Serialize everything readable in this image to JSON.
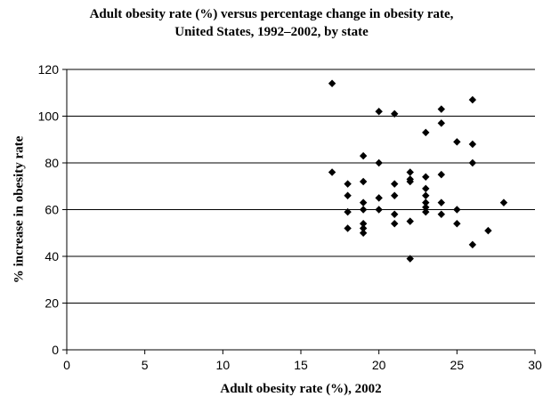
{
  "chart_data": {
    "type": "scatter",
    "title_line1": "Adult obesity rate (%) versus percentage change in obesity rate,",
    "title_line2": "United States, 1992–2002, by state",
    "xlabel": "Adult obesity rate (%), 2002",
    "ylabel": "% increase in obesity rate",
    "xlim": [
      0,
      30
    ],
    "ylim": [
      0,
      120
    ],
    "xticks": [
      0,
      5,
      10,
      15,
      20,
      25,
      30
    ],
    "yticks": [
      0,
      20,
      40,
      60,
      80,
      100,
      120
    ],
    "grid": "horizontal",
    "marker": "diamond",
    "marker_color": "#000000",
    "series": [
      {
        "points": [
          [
            17,
            114
          ],
          [
            17,
            76
          ],
          [
            18,
            71
          ],
          [
            18,
            66
          ],
          [
            18,
            59
          ],
          [
            18,
            52
          ],
          [
            19,
            83
          ],
          [
            19,
            72
          ],
          [
            19,
            63
          ],
          [
            19,
            60
          ],
          [
            19,
            54
          ],
          [
            19,
            52
          ],
          [
            19,
            50
          ],
          [
            20,
            102
          ],
          [
            20,
            80
          ],
          [
            20,
            65
          ],
          [
            20,
            60
          ],
          [
            21,
            101
          ],
          [
            21,
            71
          ],
          [
            21,
            66
          ],
          [
            21,
            58
          ],
          [
            21,
            54
          ],
          [
            22,
            76
          ],
          [
            22,
            73
          ],
          [
            22,
            72
          ],
          [
            22,
            55
          ],
          [
            22,
            39
          ],
          [
            23,
            93
          ],
          [
            23,
            74
          ],
          [
            23,
            69
          ],
          [
            23,
            66
          ],
          [
            23,
            63
          ],
          [
            23,
            61
          ],
          [
            23,
            59
          ],
          [
            24,
            103
          ],
          [
            24,
            97
          ],
          [
            24,
            75
          ],
          [
            24,
            63
          ],
          [
            24,
            58
          ],
          [
            25,
            89
          ],
          [
            25,
            60
          ],
          [
            25,
            54
          ],
          [
            26,
            107
          ],
          [
            26,
            88
          ],
          [
            26,
            80
          ],
          [
            26,
            45
          ],
          [
            27,
            51
          ],
          [
            28,
            63
          ]
        ]
      }
    ]
  }
}
